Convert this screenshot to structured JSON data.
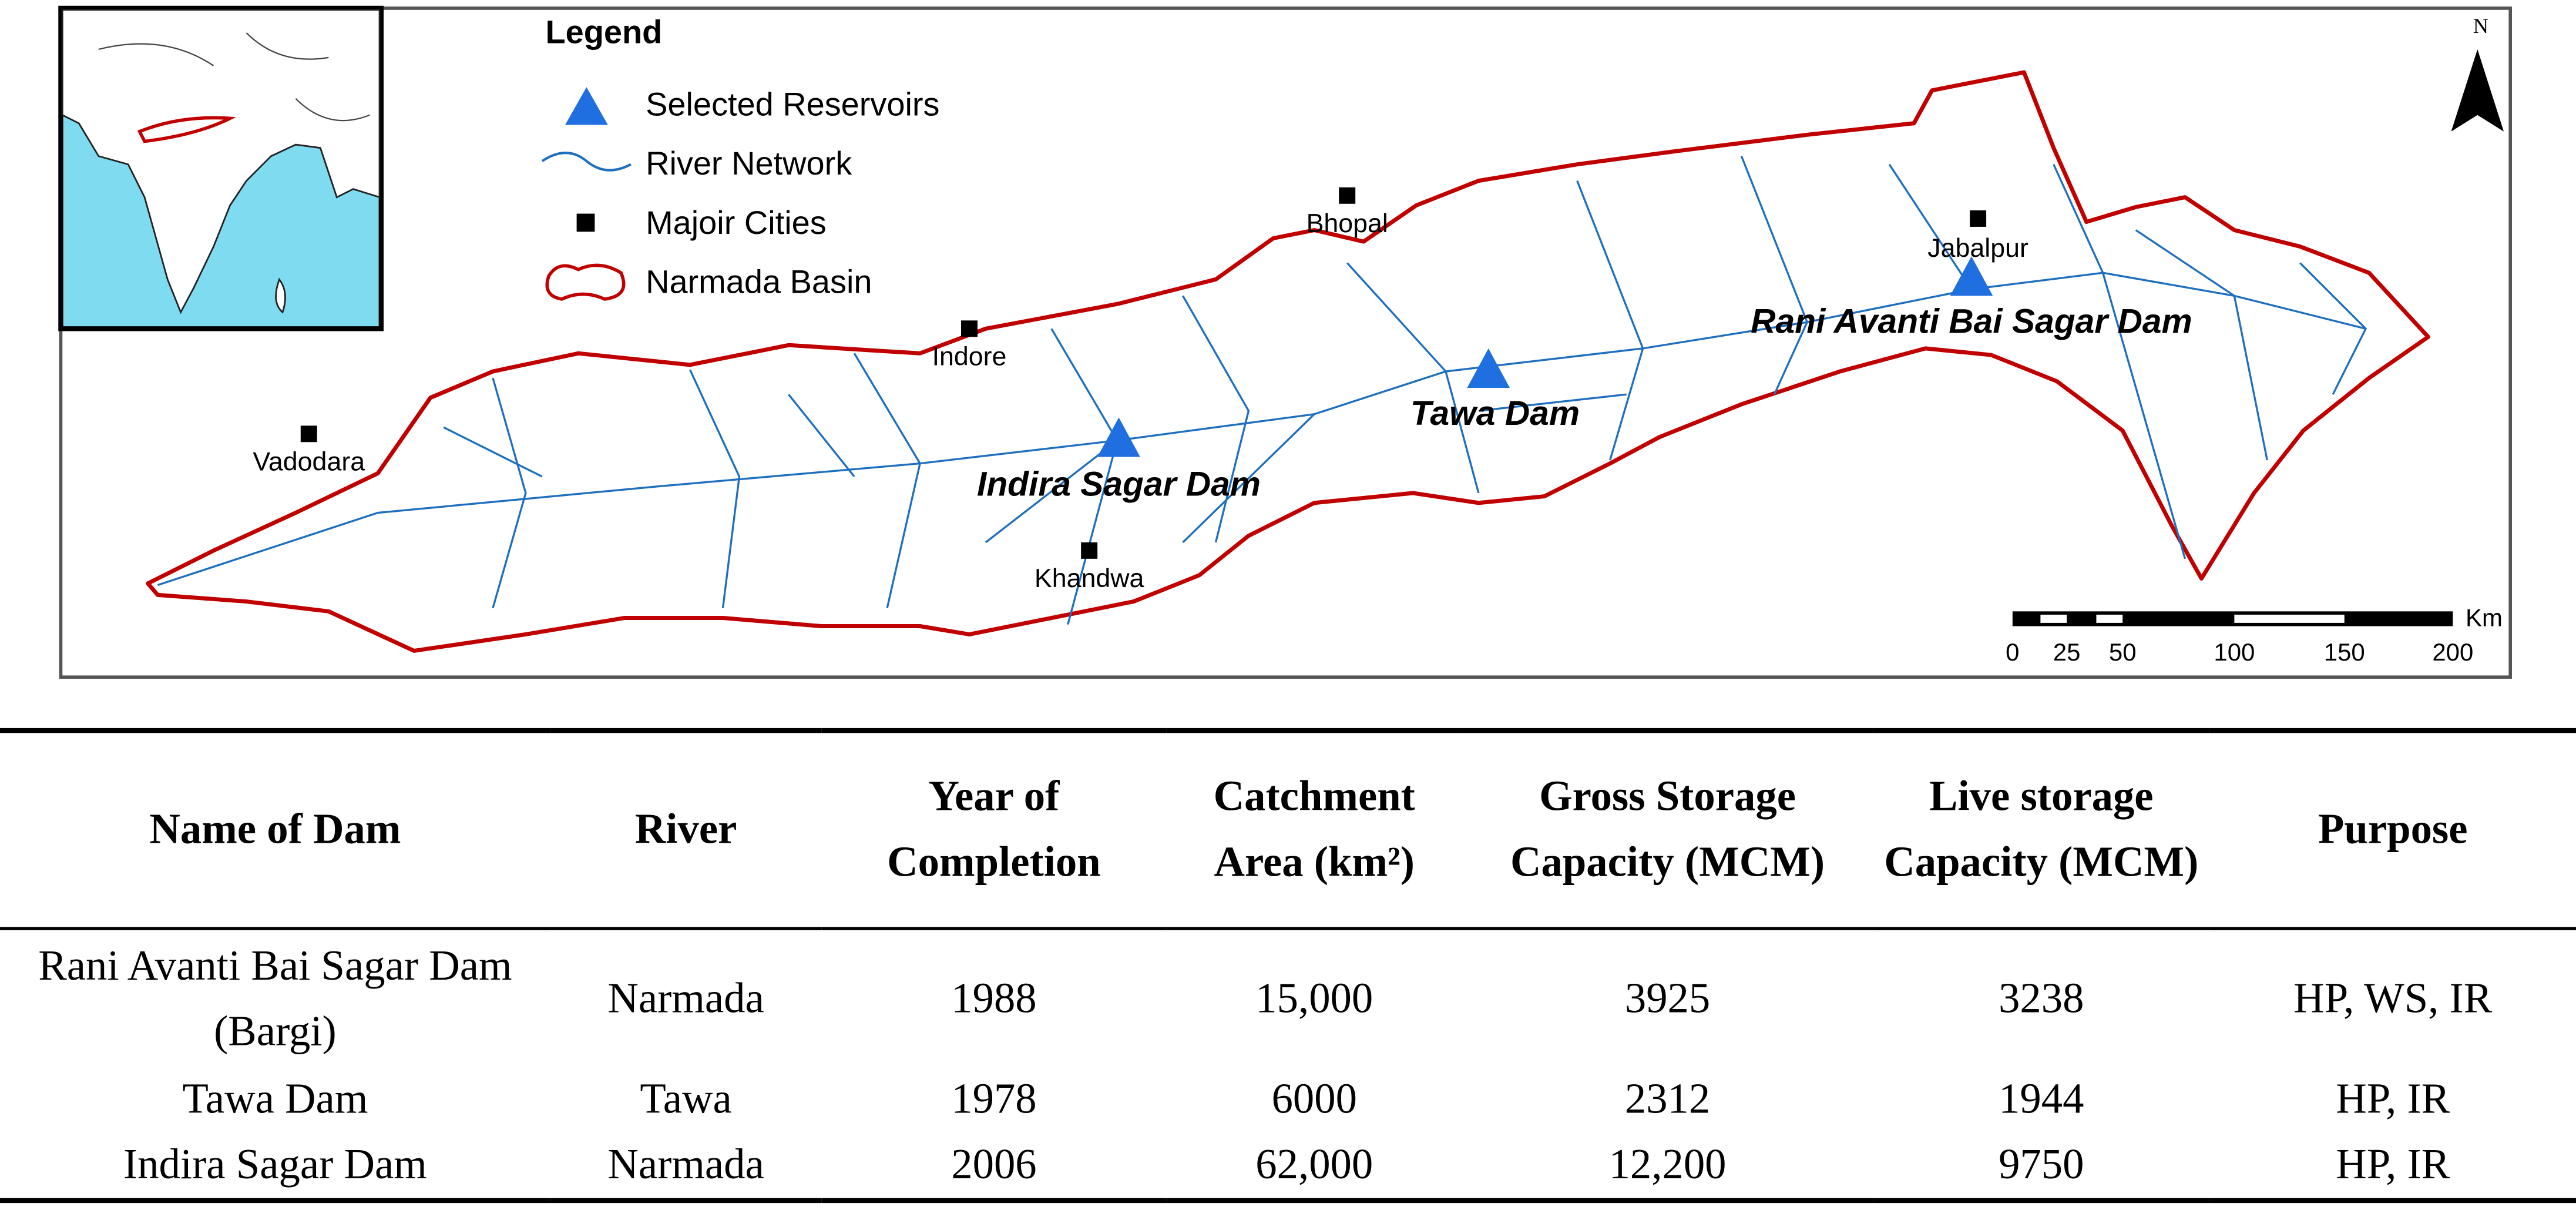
{
  "figure": {
    "legend": {
      "title": "Legend",
      "items": [
        "Selected Reservoirs",
        "River Network",
        "Majoir Cities",
        "Narmada Basin"
      ]
    },
    "north": "N",
    "cities": [
      "Bhopal",
      "Indore",
      "Vadodara",
      "Khandwa",
      "Jabalpur"
    ],
    "dams": [
      "Indira Sagar Dam",
      "Tawa Dam",
      "Rani Avanti Bai Sagar Dam"
    ],
    "scale": {
      "unit": "Km",
      "labels": [
        "0",
        "25",
        "50",
        "100",
        "150",
        "200"
      ]
    }
  },
  "table": {
    "headers": [
      "Name of Dam",
      "River",
      "Year of Completion",
      "Catchment Area (km²)",
      "Gross Storage Capacity (MCM)",
      "Live storage Capacity (MCM)",
      "Purpose"
    ],
    "rows": [
      [
        "Rani Avanti Bai Sagar Dam (Bargi)",
        "Narmada",
        "1988",
        "15,000",
        "3925",
        "3238",
        "HP, WS, IR"
      ],
      [
        "Tawa Dam",
        "Tawa",
        "1978",
        "6000",
        "2312",
        "1944",
        "HP, IR"
      ],
      [
        "Indira Sagar Dam",
        "Narmada",
        "2006",
        "62,000",
        "12,200",
        "9750",
        "HP, IR"
      ]
    ]
  }
}
